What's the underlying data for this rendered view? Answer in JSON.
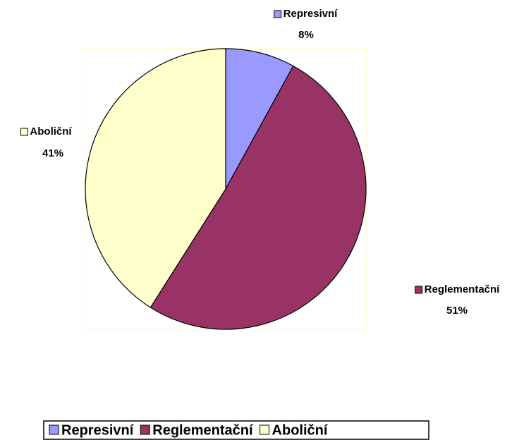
{
  "chart_data": {
    "type": "pie",
    "categories": [
      "Represivní",
      "Reglementační",
      "Aboliční"
    ],
    "values": [
      8,
      51,
      41
    ],
    "value_labels": [
      "8%",
      "51%",
      "41%"
    ],
    "colors": [
      "#9999ff",
      "#993366",
      "#ffffcc"
    ],
    "legend": "bottom"
  }
}
